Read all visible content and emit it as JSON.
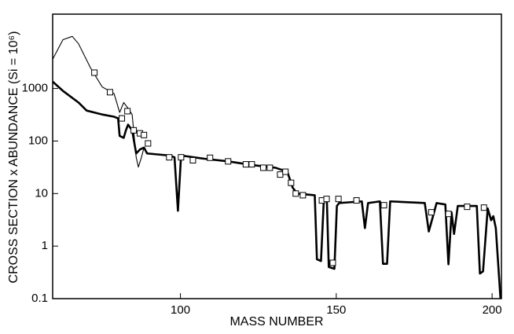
{
  "chart_data": {
    "type": "line",
    "xlabel": "MASS NUMBER",
    "ylabel": "CROSS SECTION  x  ABUNDANCE  (Si = 10⁶)",
    "xlim": [
      59,
      203
    ],
    "xticks": [
      100,
      150,
      200
    ],
    "ylim": [
      0.1,
      26000
    ],
    "yscale": "log",
    "yticks": [
      0.1,
      1,
      10,
      100,
      1000
    ],
    "series": [
      {
        "kind": "thick",
        "color": "#000000",
        "x": [
          59,
          62.3,
          67.3,
          69.9,
          74.9,
          78.7,
          80,
          80.5,
          81.8,
          82.5,
          83.2,
          84.5,
          85.8,
          87,
          88.3,
          89.3,
          96.4,
          98.1,
          99.2,
          100.2,
          107.7,
          115.3,
          122.9,
          130.5,
          134.3,
          136,
          137.5,
          143.1,
          143.8,
          145.1,
          146,
          147,
          147.6,
          149.4,
          150.2,
          150.9,
          158.2,
          159.2,
          160.2,
          164,
          165,
          166.3,
          167.3,
          178.4,
          179.7,
          182.2,
          185,
          186,
          187,
          187.8,
          189,
          195.1,
          196.1,
          197.1,
          198.6,
          199.7,
          200.4,
          201.2,
          202.7
        ],
        "values": [
          1350,
          900,
          540,
          380,
          320,
          290,
          270,
          125,
          115,
          160,
          205,
          160,
          58,
          69,
          75,
          58,
          53,
          49,
          4.7,
          53,
          46,
          41,
          35,
          31,
          26,
          13,
          10,
          9.3,
          0.56,
          0.52,
          7.4,
          7.1,
          0.4,
          0.37,
          5.8,
          6.6,
          7.1,
          2.2,
          6.6,
          7.1,
          0.46,
          0.46,
          7.1,
          6.6,
          1.9,
          6.6,
          6.2,
          0.45,
          4.4,
          1.7,
          5.8,
          5.8,
          0.3,
          0.33,
          5.2,
          3.1,
          3.7,
          2.2,
          0.1
        ]
      },
      {
        "kind": "thin",
        "color": "#000000",
        "x": [
          59,
          62.3,
          65.3,
          67.3,
          71.1,
          74.9,
          78.7,
          80.5,
          81.8,
          83.2,
          84.5,
          85.8,
          86.5,
          87.5,
          88.3
        ],
        "values": [
          3600,
          8500,
          9800,
          7100,
          2500,
          1070,
          800,
          350,
          540,
          420,
          320,
          49,
          32,
          49,
          75
        ]
      },
      {
        "kind": "squares",
        "color": "#000000",
        "x": [
          72.4,
          77.4,
          81.2,
          83,
          85,
          87,
          88.3,
          89.6,
          96.4,
          100.2,
          104,
          109.5,
          115.3,
          121,
          122.9,
          126.6,
          128.7,
          132,
          133.7,
          135.5,
          137,
          139.3,
          145.4,
          146.9,
          148.9,
          150.7,
          156.5,
          165.3,
          180.5,
          186,
          192,
          197.4
        ],
        "values": [
          2000,
          850,
          270,
          370,
          160,
          140,
          130,
          90,
          49,
          49,
          43,
          48,
          41,
          36,
          36,
          31,
          31,
          23,
          26,
          16,
          10,
          9.3,
          7.4,
          7.9,
          0.48,
          7.9,
          7.4,
          6,
          4.4,
          4.1,
          5.6,
          5.4
        ]
      }
    ]
  }
}
